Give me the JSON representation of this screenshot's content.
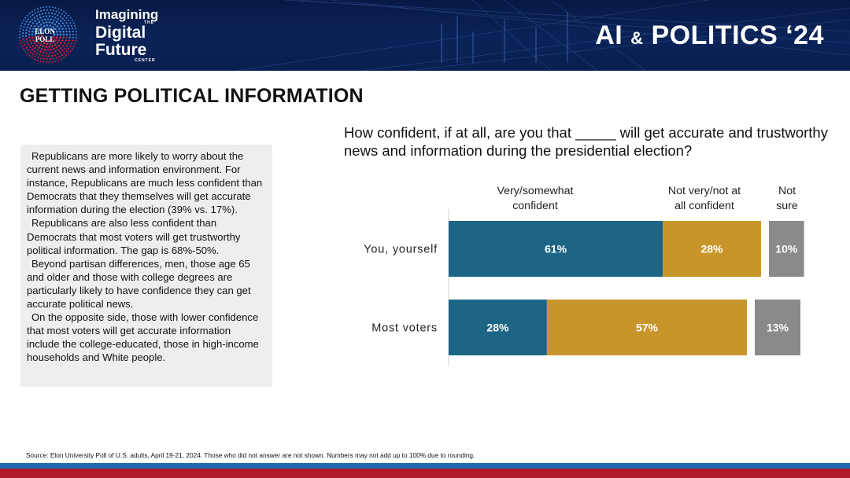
{
  "header": {
    "brand_line1": "Imagining",
    "brand_the": "THE",
    "brand_line2": "Digital",
    "brand_line3": "Future",
    "brand_center": "CENTER",
    "logo_text_top": "ELON",
    "logo_text_bottom": "POLL",
    "title_main_a": "AI ",
    "title_amp": "&",
    "title_main_b": " POLITICS ‘24",
    "colors": {
      "background": "#0b2358",
      "dots_red": "#d3222f",
      "dots_blue": "#3f86d6"
    }
  },
  "page": {
    "title": "GETTING POLITICAL INFORMATION"
  },
  "summary": {
    "paragraphs": [
      "Republicans are more likely to worry about the current news and information environment. For instance, Republicans are much less confident than Democrats that they themselves will get accurate information during the election (39% vs. 17%).",
      "Republicans are also less confident than Democrats that most voters will get trustworthy political information. The gap is 68%-50%.",
      "Beyond partisan differences, men, those age 65 and older and those with college degrees are particularly likely to have confidence they can get accurate political news.",
      "On the opposite side, those with lower confidence that most voters will get accurate information include the college-educated, those in high-income households and White people."
    ]
  },
  "chart_data": {
    "type": "bar",
    "orientation": "horizontal",
    "stacked": true,
    "title": "How confident, if at all, are you that _____ will get accurate and trustworthy news and information during the presidential election?",
    "categories": [
      "You, yourself",
      "Most voters"
    ],
    "series": [
      {
        "name": "Very/somewhat confident",
        "name_lines": [
          "Very/somewhat",
          "confident"
        ],
        "values": [
          61,
          28
        ],
        "color": "#1d6585"
      },
      {
        "name": "Not very/not at all confident",
        "name_lines": [
          "Not very/not at",
          "all confident"
        ],
        "values": [
          28,
          57
        ],
        "color": "#c8952a"
      },
      {
        "name": "Not sure",
        "name_lines": [
          "Not",
          "sure"
        ],
        "values": [
          10,
          13
        ],
        "color": "#8a8a8a"
      }
    ],
    "data_labels": [
      [
        "61%",
        "28%",
        "10%"
      ],
      [
        "28%",
        "57%",
        "13%"
      ]
    ],
    "unit": "%",
    "xlim": [
      0,
      100
    ]
  },
  "footer": {
    "source": "Source: Elon University Poll of U.S. adults, April 19-21, 2024. Those who did not answer are not shown. Numbers may not add up to 100% due to rounding."
  }
}
